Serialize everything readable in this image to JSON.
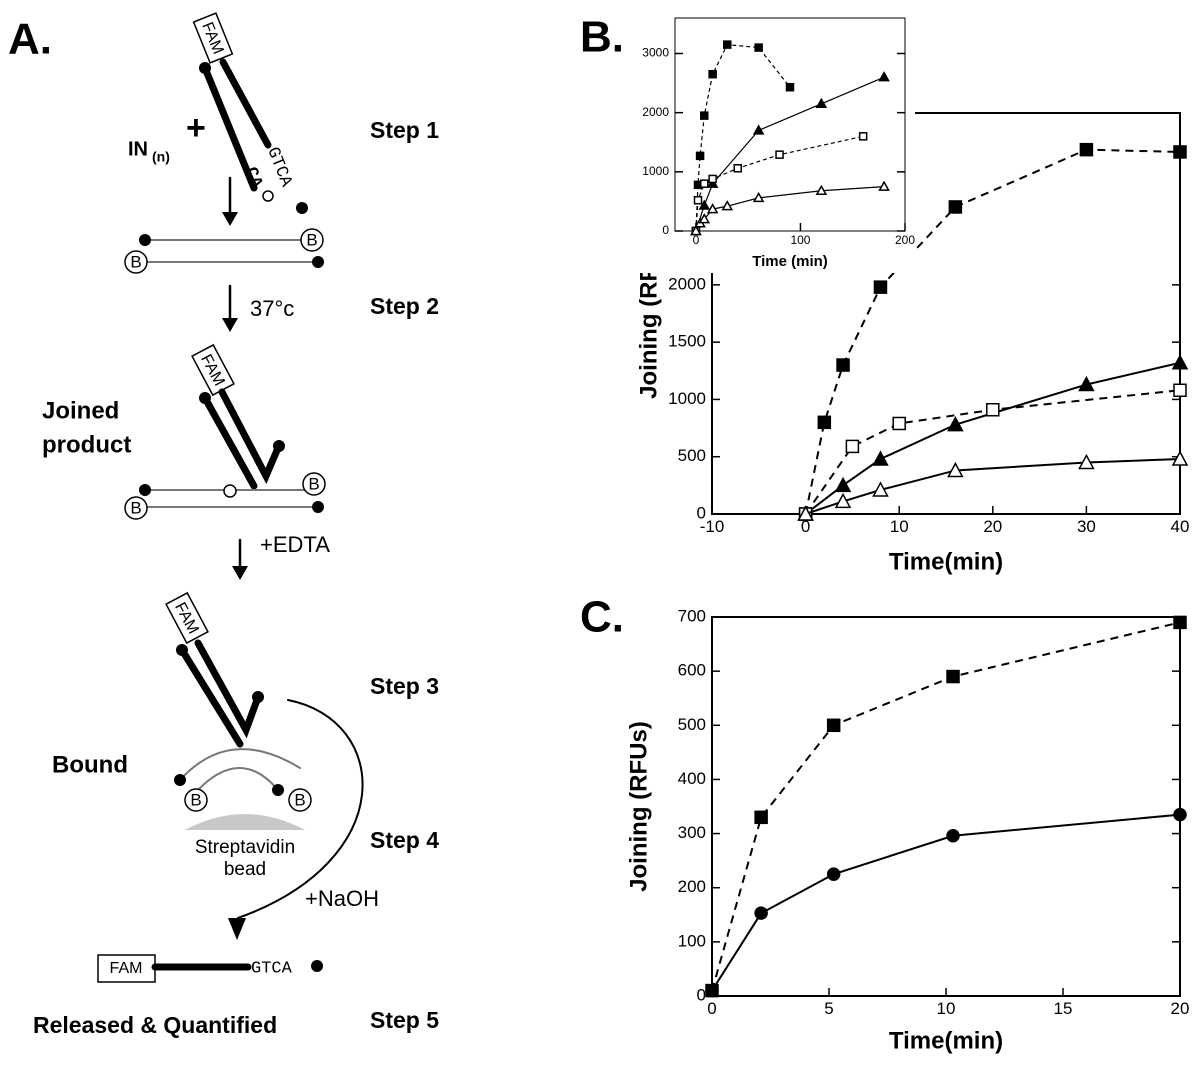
{
  "panel_labels": {
    "a": "A.",
    "b": "B.",
    "c": "C."
  },
  "diagram": {
    "fam": "FAM",
    "in": "IN",
    "in_sub": "(n)",
    "plus": "+",
    "gtca": "GTCA",
    "ca": "CA",
    "b": "B",
    "temp": "37°c",
    "edta": "+EDTA",
    "naoh": "+NaOH",
    "joined": [
      "Joined",
      "product"
    ],
    "bound": "Bound",
    "bead": [
      "Streptavidin",
      "bead"
    ],
    "released": "Released & Quantified",
    "steps": [
      "Step 1",
      "Step 2",
      "Step 3",
      "Step 4",
      "Step 5"
    ]
  },
  "chart_data": [
    {
      "type": "line",
      "x_label": "Time(min)",
      "y_label": "Joining (RFUs)",
      "xlim": [
        -10,
        40
      ],
      "ylim": [
        0,
        3500
      ],
      "xticks": [
        -10,
        0,
        10,
        20,
        30,
        40
      ],
      "yticks": [
        0,
        500,
        1000,
        1500,
        2000
      ],
      "series": [
        {
          "marker": "square",
          "filled": true,
          "dashed": true,
          "color": "#000000",
          "x": [
            0,
            2,
            4,
            8,
            16,
            30,
            40
          ],
          "values": [
            0,
            800,
            1300,
            1980,
            2680,
            3180,
            3160
          ]
        },
        {
          "marker": "triangle",
          "filled": true,
          "dashed": false,
          "color": "#000000",
          "x": [
            0,
            4,
            8,
            16,
            30,
            40
          ],
          "values": [
            0,
            250,
            480,
            780,
            1130,
            1320
          ]
        },
        {
          "marker": "square",
          "filled": false,
          "dashed": true,
          "color": "#000000",
          "x": [
            0,
            5,
            10,
            20,
            40
          ],
          "values": [
            0,
            590,
            790,
            910,
            1080
          ]
        },
        {
          "marker": "triangle",
          "filled": false,
          "dashed": false,
          "color": "#000000",
          "x": [
            0,
            4,
            8,
            16,
            30,
            40
          ],
          "values": [
            0,
            110,
            210,
            380,
            450,
            480
          ]
        }
      ]
    },
    {
      "type": "line",
      "x_label": "Time (min)",
      "xlim": [
        -20,
        200
      ],
      "ylim": [
        0,
        3600
      ],
      "xticks": [
        0,
        100,
        200
      ],
      "yticks": [
        0,
        1000,
        2000,
        3000
      ],
      "series": [
        {
          "marker": "square",
          "filled": true,
          "dashed": true,
          "color": "#000000",
          "x": [
            0,
            2,
            4,
            8,
            16,
            30,
            60,
            90
          ],
          "values": [
            0,
            780,
            1270,
            1950,
            2650,
            3150,
            3100,
            2430
          ]
        },
        {
          "marker": "triangle",
          "filled": true,
          "dashed": false,
          "color": "#000000",
          "x": [
            0,
            8,
            16,
            60,
            120,
            180
          ],
          "values": [
            0,
            430,
            800,
            1700,
            2150,
            2600
          ]
        },
        {
          "marker": "square",
          "filled": false,
          "dashed": true,
          "color": "#000000",
          "x": [
            0,
            2,
            8,
            16,
            40,
            80,
            160
          ],
          "values": [
            0,
            520,
            800,
            880,
            1060,
            1290,
            1600
          ]
        },
        {
          "marker": "triangle",
          "filled": false,
          "dashed": false,
          "color": "#000000",
          "x": [
            0,
            4,
            8,
            16,
            30,
            60,
            120,
            180
          ],
          "values": [
            0,
            130,
            200,
            370,
            420,
            560,
            680,
            750
          ]
        }
      ]
    },
    {
      "type": "line",
      "x_label": "Time(min)",
      "y_label": "Joining (RFUs)",
      "xlim": [
        0,
        20
      ],
      "ylim": [
        0,
        700
      ],
      "xticks": [
        0,
        5,
        10,
        15,
        20
      ],
      "yticks": [
        0,
        100,
        200,
        300,
        400,
        500,
        600,
        700
      ],
      "series": [
        {
          "marker": "square",
          "filled": true,
          "dashed": true,
          "color": "#000000",
          "x": [
            0,
            2.1,
            5.2,
            10.3,
            20
          ],
          "values": [
            10,
            330,
            500,
            590,
            690
          ]
        },
        {
          "marker": "circle",
          "filled": true,
          "dashed": false,
          "color": "#000000",
          "x": [
            0,
            2.1,
            5.2,
            10.3,
            20
          ],
          "values": [
            10,
            153,
            225,
            296,
            335
          ]
        }
      ]
    }
  ]
}
